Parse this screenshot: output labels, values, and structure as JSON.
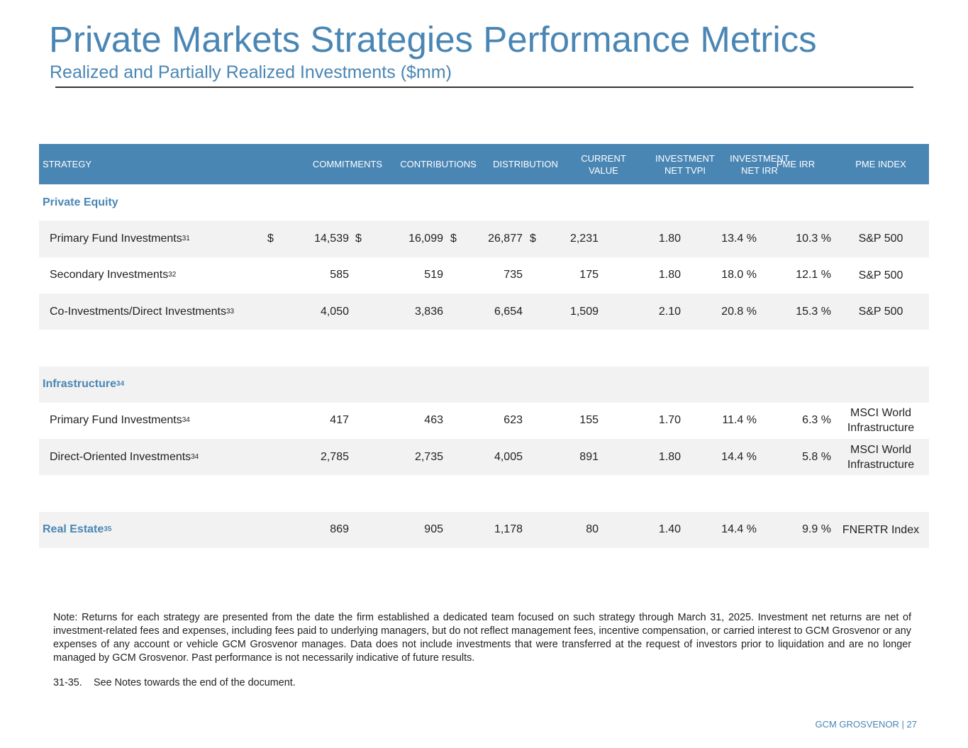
{
  "header": {
    "title": "Private Markets Strategies Performance Metrics",
    "subtitle": "Realized and Partially Realized Investments ($mm)"
  },
  "table": {
    "columns": [
      "STRATEGY",
      "COMMITMENTS",
      "CONTRIBUTIONS",
      "DISTRIBUTION",
      "CURRENT VALUE",
      "INVESTMENT NET TVPI",
      "INVESTMENT NET IRR",
      "PME IRR",
      "PME INDEX"
    ],
    "sections": [
      {
        "label": "Private Equity",
        "rows": [
          {
            "label": "Primary Fund Investments",
            "note": "31",
            "currency": "$",
            "values": [
              "14,539",
              "16,099",
              "26,877",
              "2,231",
              "1.80",
              "13.4 %",
              "10.3 %",
              "S&P 500"
            ]
          },
          {
            "label": "Secondary Investments",
            "note": "32",
            "values": [
              "585",
              "519",
              "735",
              "175",
              "1.80",
              "18.0 %",
              "12.1 %",
              "S&P 500"
            ]
          },
          {
            "label": "Co-Investments/Direct Investments",
            "note": "33",
            "values": [
              "4,050",
              "3,836",
              "6,654",
              "1,509",
              "2.10",
              "20.8 %",
              "15.3 %",
              "S&P 500"
            ]
          }
        ]
      },
      {
        "label": "Infrastructure",
        "note": "34",
        "rows": [
          {
            "label": "Primary Fund Investments",
            "note": "34",
            "values": [
              "417",
              "463",
              "623",
              "155",
              "1.70",
              "11.4 %",
              "6.3 %",
              "MSCI World Infrastructure"
            ]
          },
          {
            "label": "Direct-Oriented Investments",
            "note": "34",
            "values": [
              "2,785",
              "2,735",
              "4,005",
              "891",
              "1.80",
              "14.4 %",
              "5.8 %",
              "MSCI World Infrastructure"
            ]
          }
        ]
      },
      {
        "label": "Real Estate",
        "note": "35",
        "values": [
          "869",
          "905",
          "1,178",
          "80",
          "1.40",
          "14.4 %",
          "9.9 %",
          "FNERTR Index"
        ],
        "rows": []
      }
    ]
  },
  "notes": {
    "text": "Note: Returns for each strategy are presented from the date the firm established a dedicated team focused on such strategy through March 31, 2025. Investment net returns are net of investment-related fees and expenses, including fees paid to underlying managers, but do not reflect management fees, incentive compensation, or carried interest to GCM Grosvenor or any expenses of any account or vehicle GCM Grosvenor manages. Data does not include investments that were transferred at the request of investors prior to liquidation and are no longer managed by GCM Grosvenor. Past performance is not necessarily indicative of future results.",
    "footnote_ref": "31-35.",
    "footnote_text": "See Notes towards the end of the document."
  },
  "footer": "GCM GROSVENOR | 27"
}
